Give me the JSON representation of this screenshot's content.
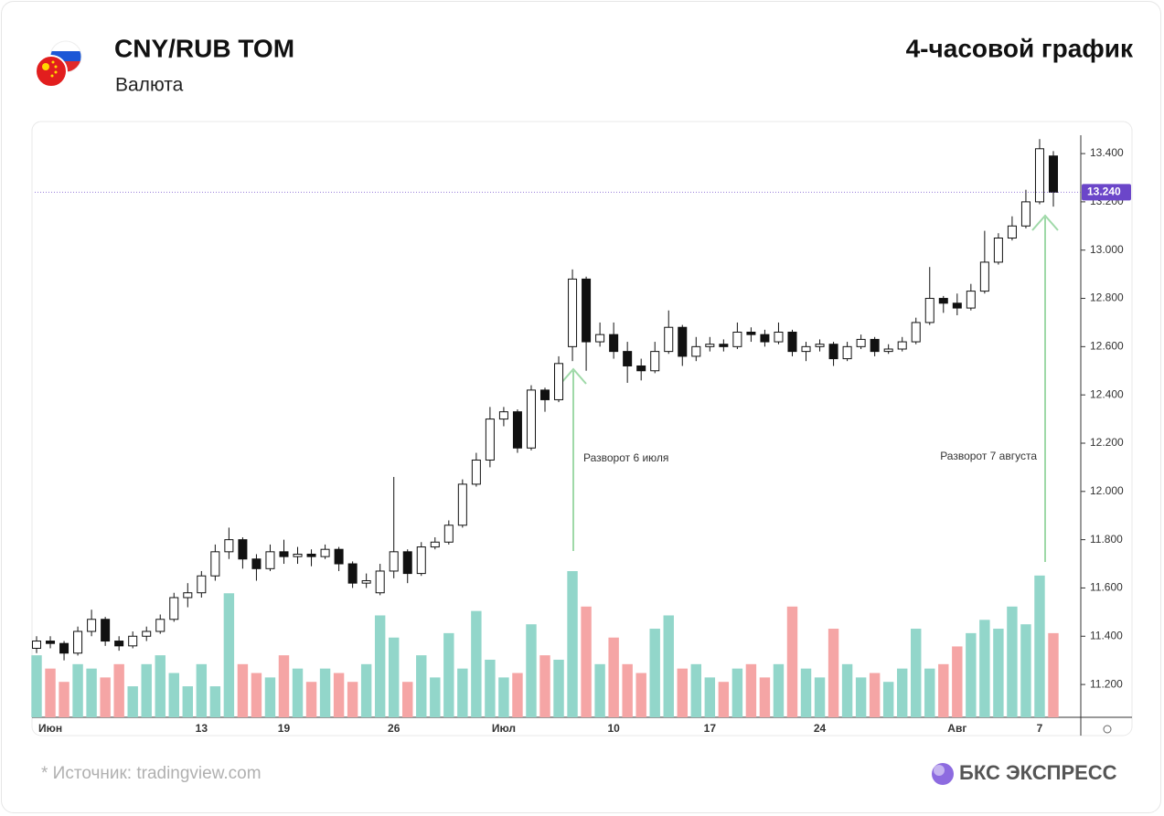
{
  "header": {
    "title": "CNY/RUB TOM",
    "subtitle": "Валюта",
    "timeframe": "4-часовой график"
  },
  "footer": {
    "source": "*  Источник: tradingview.com",
    "brand": "БКС ЭКСПРЕСС"
  },
  "chart_data": {
    "type": "candlestick",
    "categories": [
      null,
      "Июн",
      null,
      null,
      null,
      null,
      null,
      null,
      null,
      null,
      null,
      null,
      "13",
      null,
      null,
      null,
      null,
      null,
      "19",
      null,
      null,
      null,
      null,
      null,
      null,
      null,
      "26",
      null,
      null,
      null,
      null,
      null,
      null,
      null,
      "Июл",
      null,
      null,
      null,
      null,
      null,
      null,
      null,
      "10",
      null,
      null,
      null,
      null,
      null,
      null,
      "17",
      null,
      null,
      null,
      null,
      null,
      null,
      null,
      "24",
      null,
      null,
      null,
      null,
      null,
      null,
      null,
      null,
      null,
      "Авг",
      null,
      null,
      null,
      null,
      null,
      "7",
      null
    ],
    "open": [
      11.35,
      11.38,
      11.37,
      11.33,
      11.42,
      11.47,
      11.38,
      11.36,
      11.4,
      11.42,
      11.47,
      11.56,
      11.58,
      11.65,
      11.75,
      11.8,
      11.72,
      11.68,
      11.75,
      11.73,
      11.74,
      11.73,
      11.76,
      11.7,
      11.62,
      11.58,
      11.67,
      11.75,
      11.66,
      11.77,
      11.79,
      11.86,
      12.03,
      12.13,
      12.3,
      12.33,
      12.18,
      12.42,
      12.38,
      12.6,
      12.88,
      12.62,
      12.65,
      12.58,
      12.52,
      12.5,
      12.58,
      12.68,
      12.56,
      12.6,
      12.61,
      12.6,
      12.66,
      12.65,
      12.62,
      12.66,
      12.58,
      12.6,
      12.61,
      12.55,
      12.6,
      12.63,
      12.58,
      12.59,
      12.62,
      12.7,
      12.8,
      12.78,
      12.76,
      12.83,
      12.95,
      13.05,
      13.1,
      13.2,
      13.39
    ],
    "high": [
      11.4,
      11.4,
      11.38,
      11.44,
      11.51,
      11.48,
      11.4,
      11.42,
      11.44,
      11.49,
      11.58,
      11.62,
      11.67,
      11.78,
      11.85,
      11.81,
      11.74,
      11.78,
      11.8,
      11.77,
      11.76,
      11.78,
      11.77,
      11.71,
      11.66,
      11.7,
      12.06,
      11.76,
      11.79,
      11.81,
      11.88,
      12.05,
      12.16,
      12.35,
      12.35,
      12.34,
      12.44,
      12.43,
      12.56,
      12.92,
      12.89,
      12.7,
      12.7,
      12.62,
      12.55,
      12.62,
      12.75,
      12.69,
      12.64,
      12.64,
      12.63,
      12.7,
      12.68,
      12.67,
      12.7,
      12.67,
      12.62,
      12.63,
      12.62,
      12.62,
      12.65,
      12.64,
      12.61,
      12.64,
      12.72,
      12.93,
      12.81,
      12.82,
      12.86,
      13.08,
      13.07,
      13.14,
      13.25,
      13.46,
      13.41
    ],
    "low": [
      11.33,
      11.35,
      11.3,
      11.32,
      11.4,
      11.36,
      11.34,
      11.35,
      11.38,
      11.41,
      11.46,
      11.52,
      11.56,
      11.63,
      11.72,
      11.68,
      11.63,
      11.67,
      11.7,
      11.7,
      11.69,
      11.72,
      11.67,
      11.6,
      11.6,
      11.57,
      11.64,
      11.62,
      11.65,
      11.76,
      11.78,
      11.85,
      12.02,
      12.1,
      12.27,
      12.16,
      12.17,
      12.33,
      12.37,
      12.54,
      12.5,
      12.6,
      12.55,
      12.45,
      12.46,
      12.49,
      12.57,
      12.52,
      12.54,
      12.58,
      12.58,
      12.59,
      12.62,
      12.6,
      12.61,
      12.56,
      12.54,
      12.58,
      12.52,
      12.54,
      12.59,
      12.56,
      12.57,
      12.58,
      12.61,
      12.69,
      12.74,
      12.73,
      12.75,
      12.82,
      12.94,
      13.04,
      13.09,
      13.19,
      13.18
    ],
    "close": [
      11.38,
      11.37,
      11.33,
      11.42,
      11.47,
      11.38,
      11.36,
      11.4,
      11.42,
      11.47,
      11.56,
      11.58,
      11.65,
      11.75,
      11.8,
      11.72,
      11.68,
      11.75,
      11.73,
      11.74,
      11.73,
      11.76,
      11.7,
      11.62,
      11.63,
      11.67,
      11.75,
      11.66,
      11.77,
      11.79,
      11.86,
      12.03,
      12.13,
      12.3,
      12.33,
      12.18,
      12.42,
      12.38,
      12.53,
      12.88,
      12.62,
      12.65,
      12.58,
      12.52,
      12.5,
      12.58,
      12.68,
      12.56,
      12.6,
      12.61,
      12.6,
      12.66,
      12.65,
      12.62,
      12.66,
      12.58,
      12.6,
      12.61,
      12.55,
      12.6,
      12.63,
      12.58,
      12.59,
      12.62,
      12.7,
      12.8,
      12.78,
      12.76,
      12.83,
      12.95,
      13.05,
      13.1,
      13.2,
      13.42,
      13.24
    ],
    "volume": [
      70,
      55,
      40,
      60,
      55,
      45,
      60,
      35,
      60,
      70,
      50,
      35,
      60,
      35,
      140,
      60,
      50,
      45,
      70,
      55,
      40,
      55,
      50,
      40,
      60,
      115,
      90,
      40,
      70,
      45,
      95,
      55,
      120,
      65,
      45,
      50,
      105,
      70,
      65,
      165,
      125,
      60,
      90,
      60,
      50,
      100,
      115,
      55,
      60,
      45,
      40,
      55,
      60,
      45,
      60,
      125,
      55,
      45,
      100,
      60,
      45,
      50,
      40,
      55,
      100,
      55,
      60,
      80,
      95,
      110,
      100,
      125,
      105,
      160,
      95
    ],
    "up_color": "#ffffff",
    "down_color": "#111111",
    "volume_up_color": "#92d6ca",
    "volume_down_color": "#f5a5a5",
    "ylim": [
      11.064,
      13.476
    ],
    "yticks": [
      {
        "value": 11.2,
        "label": "11.200"
      },
      {
        "value": 11.4,
        "label": "11.400"
      },
      {
        "value": 11.6,
        "label": "11.600"
      },
      {
        "value": 11.8,
        "label": "11.800"
      },
      {
        "value": 12.0,
        "label": "12.000"
      },
      {
        "value": 12.2,
        "label": "12.200"
      },
      {
        "value": 12.4,
        "label": "12.400"
      },
      {
        "value": 12.6,
        "label": "12.600"
      },
      {
        "value": 12.8,
        "label": "12.800"
      },
      {
        "value": 13.0,
        "label": "13.000"
      },
      {
        "value": 13.2,
        "label": "13.200"
      },
      {
        "value": 13.4,
        "label": "13.400"
      }
    ],
    "last_price": {
      "value": 13.24,
      "label": "13.240"
    },
    "last_price_color": "#6b46c9",
    "annotations": [
      "Разворот 6 июля",
      "Разворот 7 августа"
    ]
  }
}
